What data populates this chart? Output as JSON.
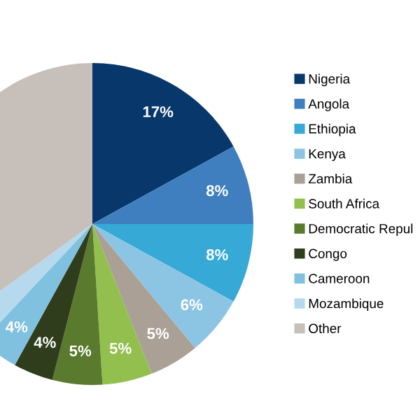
{
  "chart_data": {
    "type": "pie",
    "categories": [
      "Nigeria",
      "Angola",
      "Ethiopia",
      "Kenya",
      "Zambia",
      "South Africa",
      "Democratic Repul",
      "Congo",
      "Cameroon",
      "Mozambique",
      "Other"
    ],
    "values": [
      17,
      8,
      8,
      6,
      5,
      5,
      5,
      4,
      4,
      3,
      35
    ],
    "value_labels": [
      "17%",
      "8%",
      "8%",
      "6%",
      "5%",
      "5%",
      "5%",
      "4%",
      "4%",
      null,
      null
    ],
    "colors": [
      "#08376b",
      "#3f7fbf",
      "#36a9d6",
      "#8cc5e3",
      "#aaa096",
      "#93bf4f",
      "#5a7a2e",
      "#2f3d1c",
      "#7fc1df",
      "#b6d9ee",
      "#c7c0ba"
    ],
    "legend": "right"
  }
}
